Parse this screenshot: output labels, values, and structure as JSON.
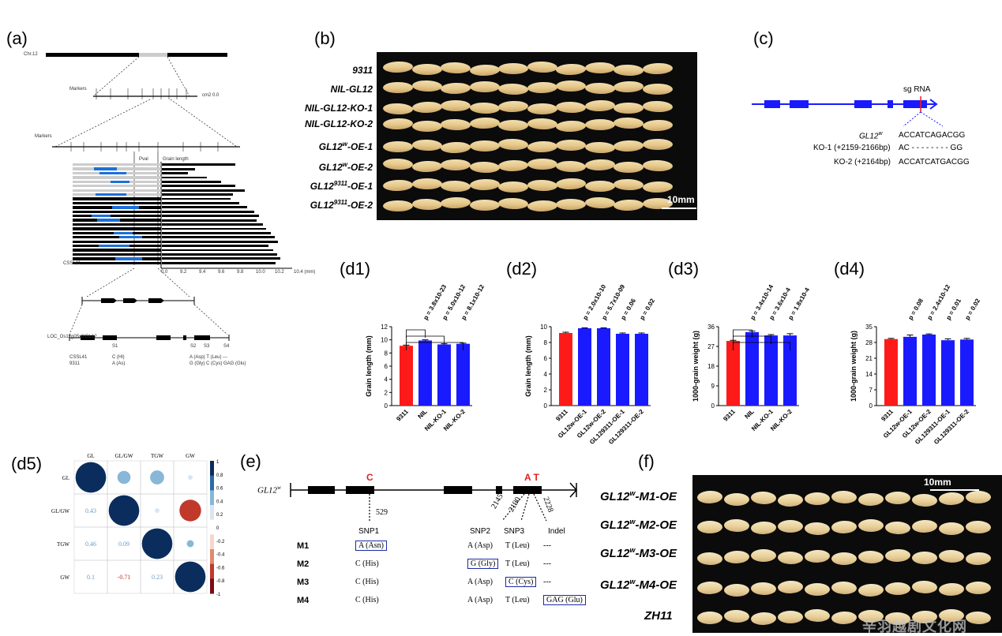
{
  "panels": {
    "a": "(a)",
    "b": "(b)",
    "c": "(c)",
    "d1": "(d1)",
    "d2": "(d2)",
    "d3": "(d3)",
    "d4": "(d4)",
    "d5": "(d5)",
    "e": "(e)",
    "f": "(f)"
  },
  "panel_a": {
    "chr_label": "Chr.12",
    "markers_label_1": "Markers",
    "markers_label_2": "Markers",
    "scale_label": "cm2 0.0",
    "grain_length_label": "Grain length",
    "pval_label": "Pval",
    "ticks": [
      "0.0",
      "9.2",
      "9.4",
      "9.6",
      "9.8",
      "10.0",
      "10.2",
      "10.4 (mm)"
    ],
    "bars": [
      0.62,
      0.28,
      0.22,
      0.38,
      0.5,
      0.62,
      0.7,
      0.6,
      0.58,
      0.65,
      0.72,
      0.78,
      0.82,
      0.8,
      0.85,
      0.88,
      0.92,
      0.95,
      0.98,
      0.9,
      0.94,
      0.97,
      1.0,
      0.96
    ],
    "gene_label": "LOC_Os12g05x0/GL12",
    "snp_labels": [
      "S1",
      "S2",
      "S3",
      "S4"
    ],
    "csslr_label": "CSSL41",
    "c9311_label": "9311",
    "allele_c": "C (Hl)",
    "allele_a": "A (As)",
    "allele_right_1": "A (Asp) T (Leu) ---",
    "allele_right_2": "G (Gly) C (Cys) GAG (Glu)"
  },
  "panel_b": {
    "rows": [
      "9311",
      "NIL-GL12",
      "NIL-GL12-KO-1",
      "NIL-GL12-KO-2",
      "GL12w-OE-1",
      "GL12w-OE-2",
      "GL129311-OE-1",
      "GL129311-OE-2"
    ],
    "scale": "10mm"
  },
  "panel_c": {
    "sgrna": "sg RNA",
    "rows": [
      {
        "name": "GL12w",
        "seq": "ACCATCAGACGG"
      },
      {
        "name": "KO-1 (+2159-2166bp)",
        "seq": "AC - - - - - - - - GG"
      },
      {
        "name": "KO-2 (+2164bp)",
        "seq": "ACCATCATGACGG"
      }
    ]
  },
  "chart_data": [
    {
      "type": "bar",
      "id": "d1",
      "ylabel": "Grain length (mm)",
      "ylim": [
        0,
        12
      ],
      "yticks": [
        0,
        2,
        4,
        6,
        8,
        10,
        12
      ],
      "categories": [
        "9311",
        "NIL",
        "NIL-KO-1",
        "NIL-KO-2"
      ],
      "values": [
        9.1,
        9.9,
        9.3,
        9.4
      ],
      "errors": [
        0.1,
        0.1,
        0.1,
        0.1
      ],
      "colors": [
        "#ff1a1a",
        "#1a1aff",
        "#1a1aff",
        "#1a1aff"
      ],
      "pvalues": [
        "p = 3.8x10-23",
        "p = 5.0x10-12",
        "p = 8.1x10-12"
      ]
    },
    {
      "type": "bar",
      "id": "d2",
      "ylabel": "Grain length (mm)",
      "ylim": [
        0,
        10
      ],
      "yticks": [
        0,
        2,
        4,
        6,
        8,
        10
      ],
      "categories": [
        "9311",
        "GL12w-OE-1",
        "GL12w-OE-2",
        "GL129311-OE-1",
        "GL129311-OE-2"
      ],
      "values": [
        9.2,
        9.8,
        9.8,
        9.1,
        9.1
      ],
      "errors": [
        0.1,
        0.05,
        0.05,
        0.1,
        0.1
      ],
      "colors": [
        "#ff1a1a",
        "#1a1aff",
        "#1a1aff",
        "#1a1aff",
        "#1a1aff"
      ],
      "pvalues": [
        "p = 2.0x10-10",
        "p = 5.7x10-09",
        "p = 0.06",
        "p = 0.02"
      ]
    },
    {
      "type": "bar",
      "id": "d3",
      "ylabel": "1000-grain weight (g)",
      "ylim": [
        0,
        36
      ],
      "yticks": [
        0,
        9,
        18,
        27,
        36
      ],
      "categories": [
        "9311",
        "NIL",
        "NIL-KO-1",
        "NIL-KO-2"
      ],
      "values": [
        29.5,
        33.5,
        32.0,
        32.0
      ],
      "errors": [
        0.3,
        0.5,
        0.4,
        0.8
      ],
      "colors": [
        "#ff1a1a",
        "#1a1aff",
        "#1a1aff",
        "#1a1aff"
      ],
      "pvalues": [
        "p = 3.4x10-14",
        "p = 3.6x10-4",
        "p = 1.8x10-4"
      ]
    },
    {
      "type": "bar",
      "id": "d4",
      "ylabel": "1000-grain weight (g)",
      "ylim": [
        0,
        35
      ],
      "yticks": [
        0,
        7,
        14,
        21,
        28,
        35
      ],
      "categories": [
        "9311",
        "GL12w-OE-1",
        "GL12w-OE-2",
        "GL129311-OE-1",
        "GL129311-OE-2"
      ],
      "values": [
        29.5,
        30.5,
        31.5,
        29.0,
        29.3
      ],
      "errors": [
        0.3,
        0.8,
        0.3,
        0.6,
        0.5
      ],
      "colors": [
        "#ff1a1a",
        "#1a1aff",
        "#1a1aff",
        "#1a1aff",
        "#1a1aff"
      ],
      "pvalues": [
        "p = 0.08",
        "p = 2.4x10-12",
        "p = 0.01",
        "p = 0.02"
      ]
    },
    {
      "type": "heatmap",
      "id": "d5",
      "categories": [
        "GL",
        "GL/GW",
        "TGW",
        "GW"
      ],
      "lower": [
        [
          "0.43"
        ],
        [
          "0.46",
          "0.09"
        ],
        [
          "0.1",
          "-0.71",
          "0.23"
        ]
      ],
      "colorbar_ticks": [
        "1",
        "0.8",
        "0.6",
        "0.4",
        "0.2",
        "0",
        "-0.2",
        "-0.4",
        "-0.6",
        "-0.8",
        "-1"
      ]
    }
  ],
  "panel_e": {
    "gene": "GL12w",
    "snp_c": "C",
    "snp_at": "A T",
    "positions": [
      "529",
      "2145",
      "2190",
      "2228"
    ],
    "headers": [
      "SNP1",
      "SNP2",
      "SNP3",
      "Indel"
    ],
    "rows": [
      {
        "name": "M1",
        "c1": "A (Asn)",
        "c2": "A (Asp)",
        "c3": "T (Leu)",
        "c4": "---"
      },
      {
        "name": "M2",
        "c1": "C (His)",
        "c2": "G (Gly)",
        "c3": "T (Leu)",
        "c4": "---"
      },
      {
        "name": "M3",
        "c1": "C (His)",
        "c2": "A (Asp)",
        "c3": "C (Cys)",
        "c4": "---"
      },
      {
        "name": "M4",
        "c1": "C (His)",
        "c2": "A (Asp)",
        "c3": "T (Leu)",
        "c4": "GAG (Glu)"
      }
    ]
  },
  "panel_f": {
    "rows": [
      "GL12w-M1-OE",
      "GL12w-M2-OE",
      "GL12w-M3-OE",
      "GL12w-M4-OE",
      "ZH11"
    ],
    "scale": "10mm",
    "watermark": "辛羽越剧文化网"
  }
}
